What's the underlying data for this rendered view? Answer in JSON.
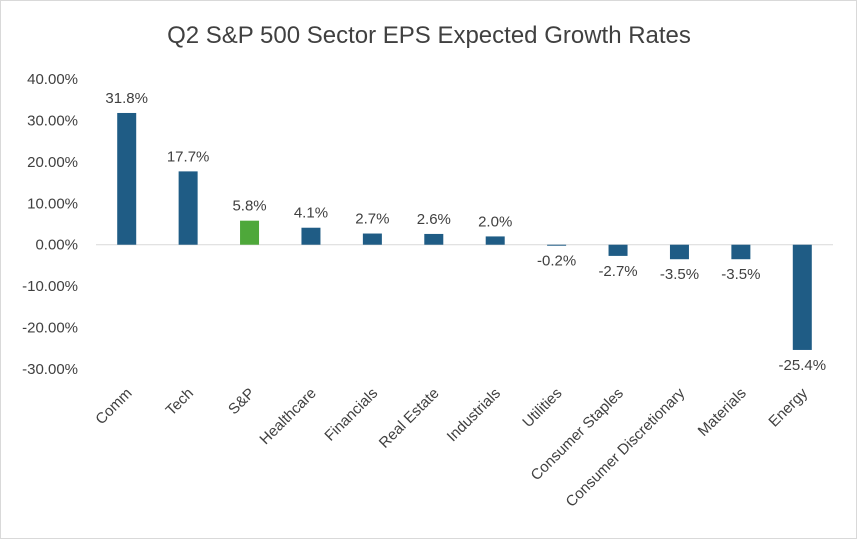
{
  "chart_data": {
    "type": "bar",
    "title": "Q2 S&P 500 Sector EPS Expected Growth Rates",
    "xlabel": "",
    "ylabel": "",
    "ylim": [
      -30,
      40
    ],
    "yticks": [
      40,
      30,
      20,
      10,
      0,
      -10,
      -20,
      -30
    ],
    "ytick_labels": [
      "40.00%",
      "30.00%",
      "20.00%",
      "10.00%",
      "0.00%",
      "-10.00%",
      "-20.00%",
      "-30.00%"
    ],
    "grid": false,
    "legend": "none",
    "categories": [
      "Comm",
      "Tech",
      "S&P",
      "Healthcare",
      "Financials",
      "Real Estate",
      "Industrials",
      "Utilities",
      "Consumer Staples",
      "Consumer Discretionary",
      "Materials",
      "Energy"
    ],
    "values": [
      31.8,
      17.7,
      5.8,
      4.1,
      2.7,
      2.6,
      2.0,
      -0.2,
      -2.7,
      -3.5,
      -3.5,
      -25.4
    ],
    "data_labels": [
      "31.8%",
      "17.7%",
      "5.8%",
      "4.1%",
      "2.7%",
      "2.6%",
      "2.0%",
      "-0.2%",
      "-2.7%",
      "-3.5%",
      "-3.5%",
      "-25.4%"
    ],
    "colors": {
      "default": "#1f5c85",
      "highlight": "#4ea83a",
      "highlight_category": "S&P",
      "axis": "#d9d9d9"
    }
  }
}
